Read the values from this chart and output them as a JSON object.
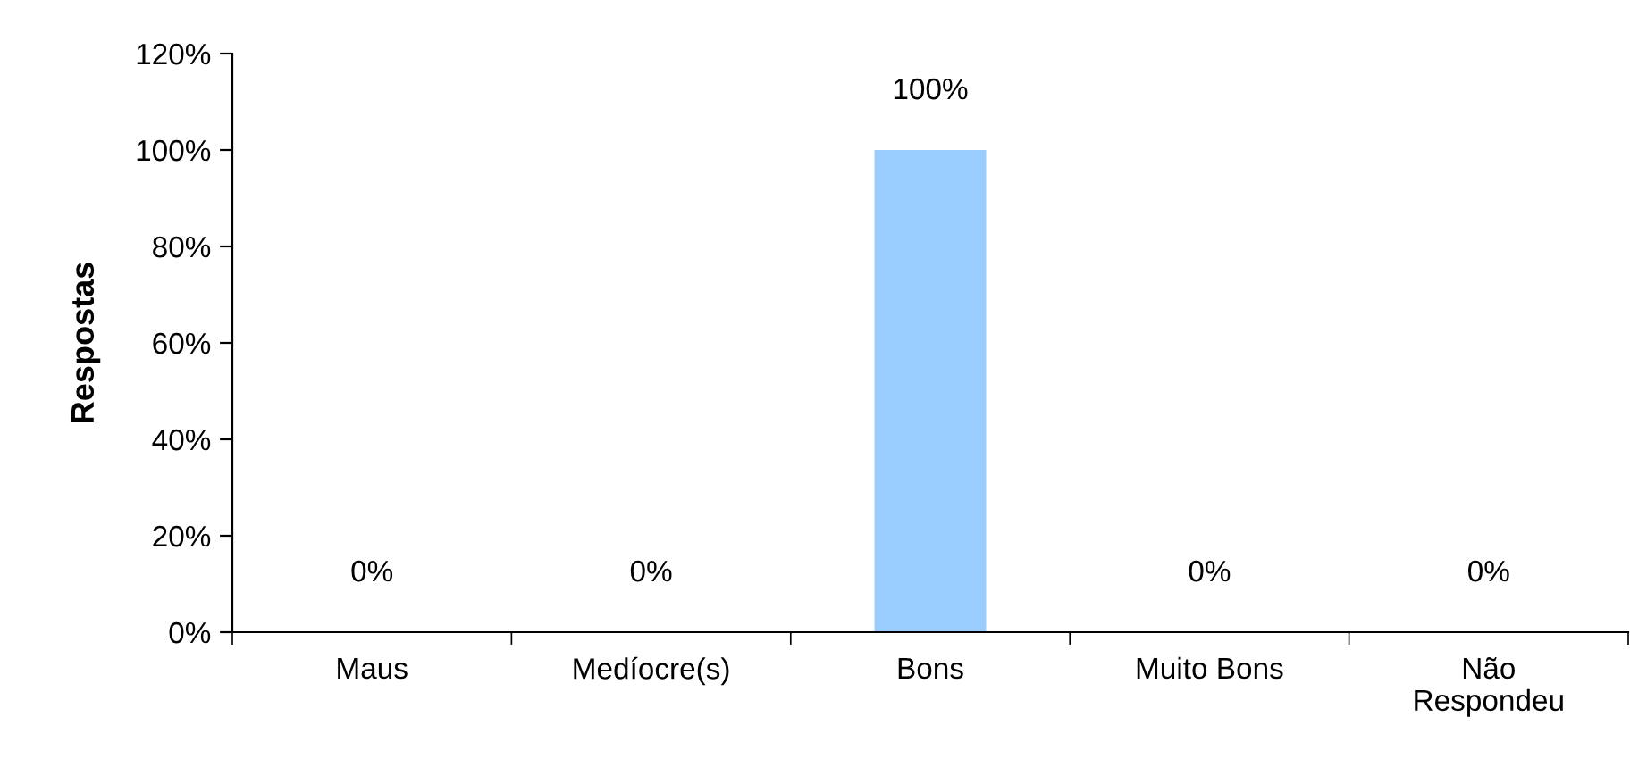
{
  "chart_data": {
    "type": "bar",
    "ylabel": "Respostas",
    "categories": [
      "Maus",
      "Medíocre(s)",
      "Bons",
      "Muito Bons",
      "Não\nRespondeu"
    ],
    "values": [
      0,
      0,
      100,
      0,
      0
    ],
    "value_labels": [
      "0%",
      "0%",
      "100%",
      "0%",
      "0%"
    ],
    "color": "#99ccff",
    "ylim": [
      0,
      120
    ],
    "yticks": [
      {
        "value": 0,
        "label": "0%"
      },
      {
        "value": 20,
        "label": "20%"
      },
      {
        "value": 40,
        "label": "40%"
      },
      {
        "value": 60,
        "label": "60%"
      },
      {
        "value": 80,
        "label": "80%"
      },
      {
        "value": 100,
        "label": "100%"
      },
      {
        "value": 120,
        "label": "120%"
      }
    ],
    "grid": false
  }
}
